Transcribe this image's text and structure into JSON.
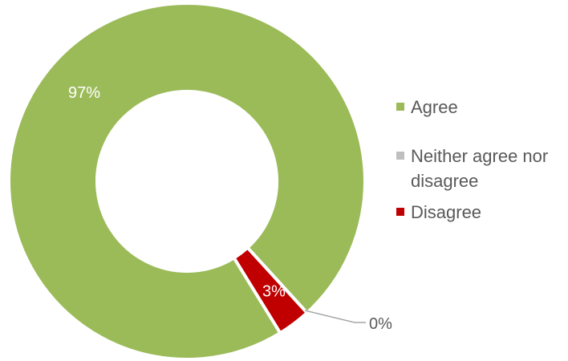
{
  "chart_data": {
    "type": "pie",
    "variant": "donut",
    "categories": [
      "Agree",
      "Neither agree nor disagree",
      "Disagree"
    ],
    "values": [
      97,
      0,
      3
    ],
    "value_labels": [
      "97%",
      "0%",
      "3%"
    ],
    "colors": [
      "#9BBB59",
      "#BFBFBF",
      "#C00000"
    ],
    "legend_position": "right",
    "title": ""
  }
}
